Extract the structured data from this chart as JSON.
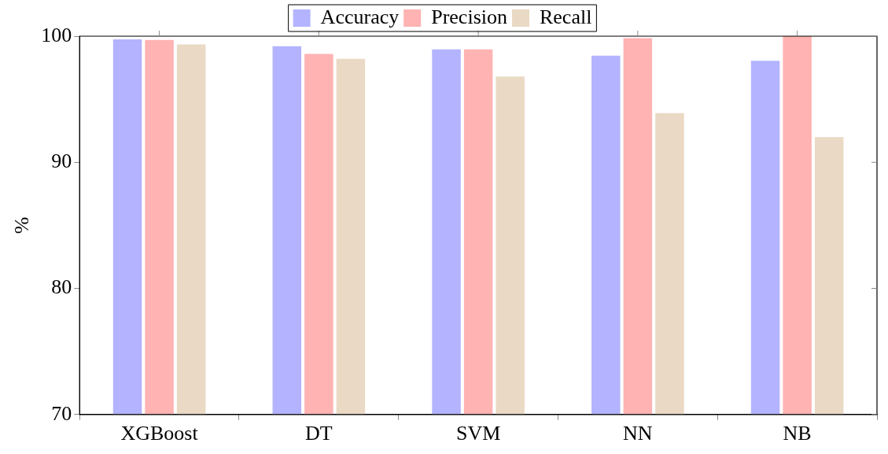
{
  "chart_data": {
    "type": "bar",
    "ylabel": "%",
    "categories": [
      "XGBoost",
      "DT",
      "SVM",
      "NN",
      "NB"
    ],
    "series": [
      {
        "name": "Accuracy",
        "color": "#b3b3ff",
        "values": [
          99.75,
          99.2,
          98.95,
          98.45,
          98.05
        ]
      },
      {
        "name": "Precision",
        "color": "#ffb3b3",
        "values": [
          99.7,
          98.6,
          98.95,
          99.85,
          100
        ]
      },
      {
        "name": "Recall",
        "color": "#ead9c4",
        "values": [
          99.35,
          98.2,
          96.8,
          93.9,
          92
        ]
      }
    ],
    "ylim": [
      70,
      100
    ],
    "yticks": [
      70,
      80,
      90,
      100
    ],
    "grid": false,
    "legend": "top"
  }
}
